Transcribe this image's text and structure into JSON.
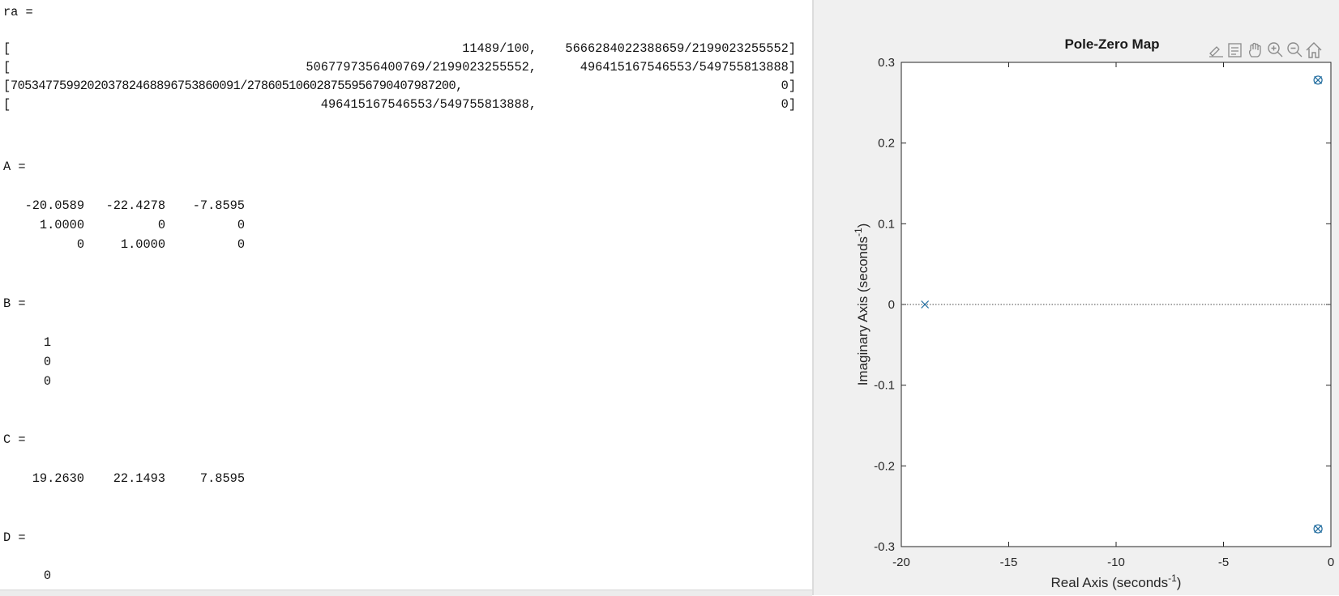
{
  "command_window": {
    "ra_label": "ra =",
    "ra_rows": [
      {
        "open": "[",
        "c1": "11489/100,",
        "c2": "5666284022388659/2199023255552]"
      },
      {
        "open": "[",
        "c1": "5067797356400769/2199023255552,",
        "c2": "496415167546553/549755813888]"
      },
      {
        "open": "[",
        "c1": "7053477599202037824688967538600​91/2786051060287559567904079872​00,",
        "c2": "0]"
      },
      {
        "open": "[",
        "c1": "496415167546553/549755813888,",
        "c2": "0]"
      }
    ],
    "A_label": "A =",
    "A_rows": [
      [
        "-20.0589",
        "-22.4278",
        "-7.8595"
      ],
      [
        "1.0000",
        "0",
        "0"
      ],
      [
        "0",
        "1.0000",
        "0"
      ]
    ],
    "B_label": "B =",
    "B_rows": [
      "1",
      "0",
      "0"
    ],
    "C_label": "C =",
    "C_rows": [
      [
        "19.2630",
        "22.1493",
        "7.8595"
      ]
    ],
    "D_label": "D =",
    "D_rows": [
      "0"
    ]
  },
  "figure": {
    "toolbar_icons": [
      "brush-icon",
      "legend-icon",
      "pan-icon",
      "zoom-in-icon",
      "zoom-out-icon",
      "home-icon"
    ]
  },
  "chart_data": {
    "type": "scatter",
    "title": "Pole-Zero Map",
    "xlabel": "Real Axis (seconds",
    "xlabel_sup": "-1",
    "xlabel_close": ")",
    "ylabel": "Imaginary Axis (seconds",
    "ylabel_sup": "-1",
    "ylabel_close": ")",
    "xlim": [
      -20,
      0
    ],
    "ylim": [
      -0.3,
      0.3
    ],
    "xticks": [
      -20,
      -15,
      -10,
      -5,
      0
    ],
    "yticks": [
      -0.3,
      -0.2,
      -0.1,
      0,
      0.1,
      0.2,
      0.3
    ],
    "xtick_labels": [
      "-20",
      "-15",
      "-10",
      "-5",
      "0"
    ],
    "ytick_labels": [
      "-0.3",
      "-0.2",
      "-0.1",
      "0",
      "0.1",
      "0.2",
      "0.3"
    ],
    "grid": false,
    "series": [
      {
        "marker": "x",
        "points": [
          [
            -18.9,
            0.0
          ],
          [
            -0.6,
            0.278
          ],
          [
            -0.6,
            -0.278
          ]
        ]
      },
      {
        "marker": "o",
        "points": [
          [
            -0.6,
            0.278
          ],
          [
            -0.6,
            -0.278
          ]
        ]
      }
    ],
    "zero_line": {
      "y": 0,
      "style": "dotted"
    },
    "colors": {
      "marker": "#1f6b9e",
      "axes": "#262626",
      "background": "#f0f0f0",
      "plot_bg": "#ffffff"
    }
  }
}
